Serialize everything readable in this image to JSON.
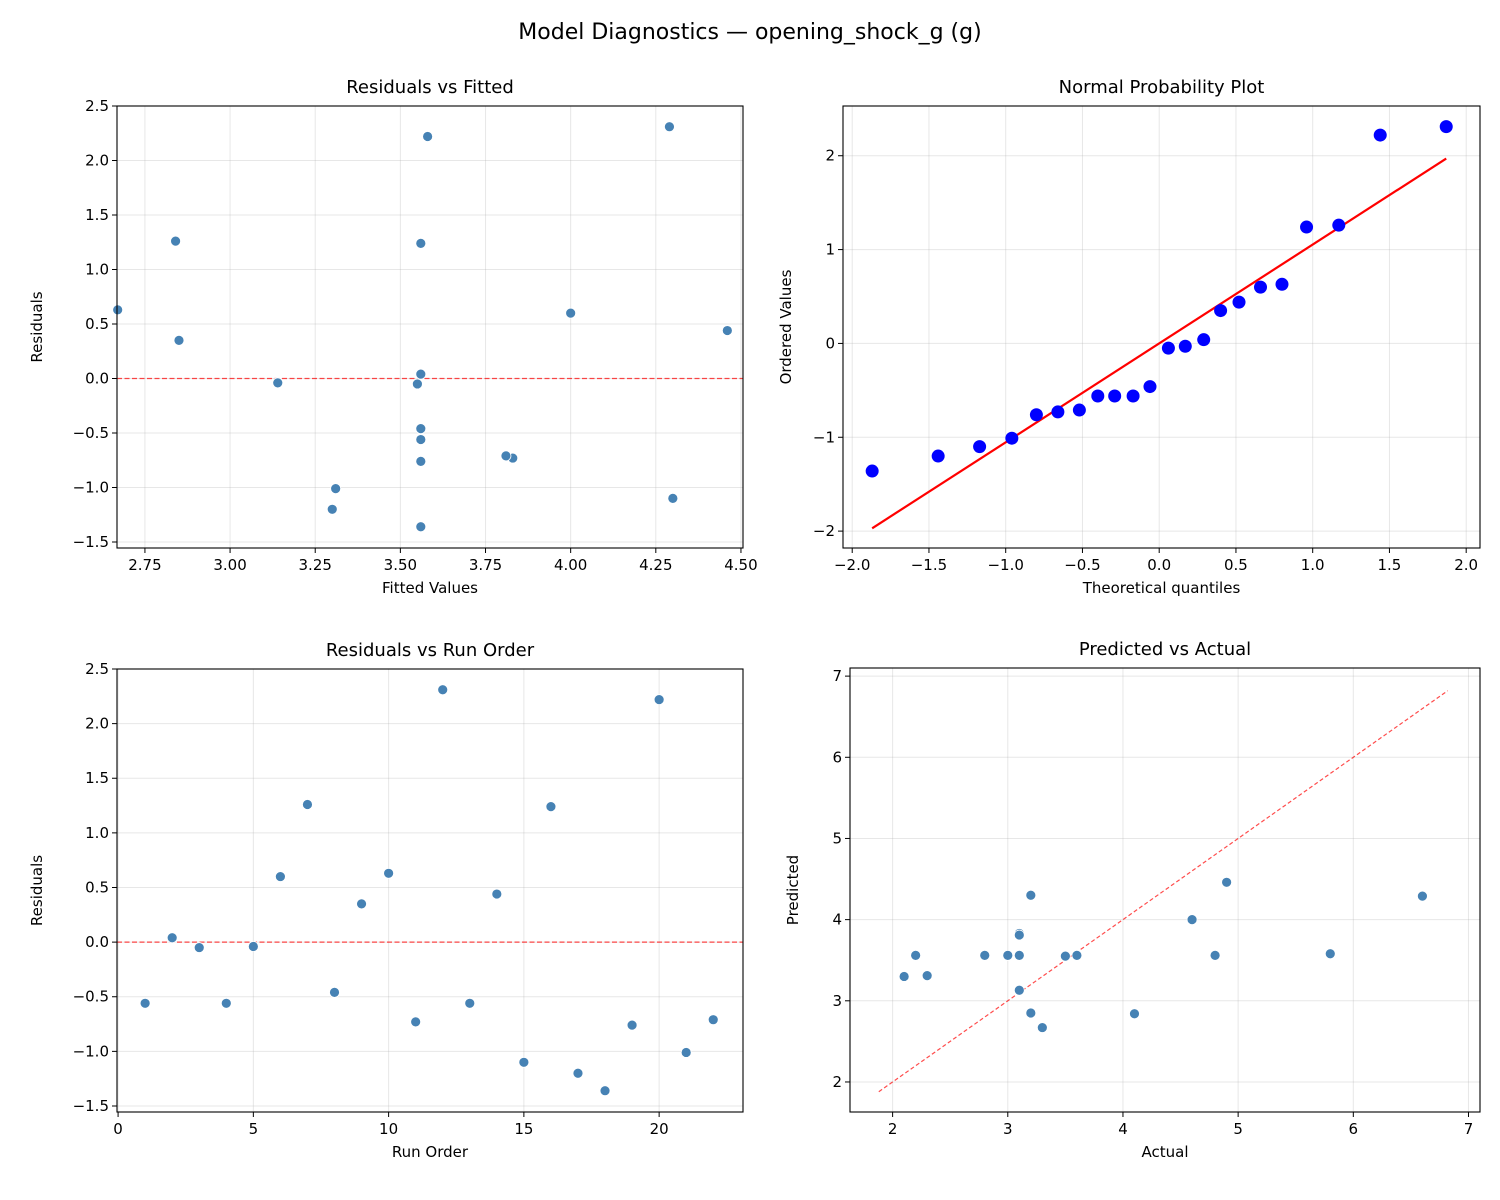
{
  "title": "Model Diagnostics — opening_shock_g (g)",
  "chart_data": [
    {
      "type": "scatter",
      "title": "Residuals vs Fitted",
      "xlabel": "Fitted Values",
      "ylabel": "Residuals",
      "xlim": [
        2.668,
        4.506
      ],
      "ylim": [
        -1.555,
        2.5
      ],
      "xticks": [
        2.75,
        3.0,
        3.25,
        3.5,
        3.75,
        4.0,
        4.25,
        4.5
      ],
      "xtick_labels": [
        "2.75",
        "3.00",
        "3.25",
        "3.50",
        "3.75",
        "4.00",
        "4.25",
        "4.50"
      ],
      "yticks": [
        -1.5,
        -1.0,
        -0.5,
        0.0,
        0.5,
        1.0,
        1.5,
        2.0,
        2.5
      ],
      "ytick_labels": [
        "−1.5",
        "−1.0",
        "−0.5",
        "0.0",
        "0.5",
        "1.0",
        "1.5",
        "2.0",
        "2.5"
      ],
      "grid": true,
      "x": [
        3.56,
        3.56,
        3.55,
        3.56,
        3.14,
        4.0,
        2.84,
        3.56,
        2.85,
        2.67,
        3.83,
        4.29,
        3.56,
        4.46,
        4.3,
        3.56,
        3.3,
        3.56,
        3.56,
        3.58,
        3.31,
        3.81
      ],
      "y": [
        -0.56,
        0.04,
        -0.05,
        -0.56,
        -0.04,
        0.6,
        1.26,
        -0.46,
        0.35,
        0.63,
        -0.73,
        2.31,
        -0.56,
        0.44,
        -1.1,
        1.24,
        -1.2,
        -1.36,
        -0.76,
        2.22,
        -1.01,
        -0.71
      ],
      "hline": 0,
      "marker_color": "#4682b4",
      "ref_color": "#ff0000"
    },
    {
      "type": "scatter",
      "title": "Normal Probability Plot",
      "xlabel": "Theoretical quantiles",
      "ylabel": "Ordered Values",
      "xlim": [
        -2.06,
        2.09
      ],
      "ylim": [
        -2.18,
        2.53
      ],
      "xticks": [
        -2.0,
        -1.5,
        -1.0,
        -0.5,
        0.0,
        0.5,
        1.0,
        1.5,
        2.0
      ],
      "xtick_labels": [
        "−2.0",
        "−1.5",
        "−1.0",
        "−0.5",
        "0.0",
        "0.5",
        "1.0",
        "1.5",
        "2.0"
      ],
      "yticks": [
        -2,
        -1,
        0,
        1,
        2
      ],
      "ytick_labels": [
        "−2",
        "−1",
        "0",
        "1",
        "2"
      ],
      "grid": true,
      "x": [
        -1.87,
        -1.44,
        -1.17,
        -0.96,
        -0.8,
        -0.66,
        -0.52,
        -0.4,
        -0.29,
        -0.17,
        -0.06,
        0.06,
        0.17,
        0.29,
        0.4,
        0.52,
        0.66,
        0.8,
        0.96,
        1.17,
        1.44,
        1.87
      ],
      "y": [
        -1.36,
        -1.2,
        -1.1,
        -1.01,
        -0.76,
        -0.73,
        -0.71,
        -0.56,
        -0.56,
        -0.56,
        -0.46,
        -0.05,
        -0.03,
        0.04,
        0.35,
        0.44,
        0.6,
        0.63,
        1.24,
        1.26,
        2.22,
        2.31
      ],
      "fit_line": {
        "x": [
          -1.87,
          1.87
        ],
        "y": [
          -1.97,
          1.97
        ]
      },
      "marker_color": "#0000ff",
      "ref_color": "#ff0000"
    },
    {
      "type": "scatter",
      "title": "Residuals vs Run Order",
      "xlabel": "Run Order",
      "ylabel": "Residuals",
      "xlim": [
        -0.04,
        23.1
      ],
      "ylim": [
        -1.555,
        2.5
      ],
      "xticks": [
        0,
        5,
        10,
        15,
        20
      ],
      "xtick_labels": [
        "0",
        "5",
        "10",
        "15",
        "20"
      ],
      "yticks": [
        -1.5,
        -1.0,
        -0.5,
        0.0,
        0.5,
        1.0,
        1.5,
        2.0,
        2.5
      ],
      "ytick_labels": [
        "−1.5",
        "−1.0",
        "−0.5",
        "0.0",
        "0.5",
        "1.0",
        "1.5",
        "2.0",
        "2.5"
      ],
      "grid": true,
      "x": [
        1,
        2,
        3,
        4,
        5,
        6,
        7,
        8,
        9,
        10,
        11,
        12,
        13,
        14,
        15,
        16,
        17,
        18,
        19,
        20,
        21,
        22
      ],
      "y": [
        -0.56,
        0.04,
        -0.05,
        -0.56,
        -0.04,
        0.6,
        1.26,
        -0.46,
        0.35,
        0.63,
        -0.73,
        2.31,
        -0.56,
        0.44,
        -1.1,
        1.24,
        -1.2,
        -1.36,
        -0.76,
        2.22,
        -1.01,
        -0.71
      ],
      "hline": 0,
      "marker_color": "#4682b4",
      "ref_color": "#ff0000"
    },
    {
      "type": "scatter",
      "title": "Predicted vs Actual",
      "xlabel": "Actual",
      "ylabel": "Predicted",
      "xlim": [
        1.63,
        7.1
      ],
      "ylim": [
        1.63,
        7.1
      ],
      "xticks": [
        2,
        3,
        4,
        5,
        6,
        7
      ],
      "xtick_labels": [
        "2",
        "3",
        "4",
        "5",
        "6",
        "7"
      ],
      "yticks": [
        2,
        3,
        4,
        5,
        6,
        7
      ],
      "ytick_labels": [
        "2",
        "3",
        "4",
        "5",
        "6",
        "7"
      ],
      "grid": true,
      "x": [
        3.0,
        3.6,
        3.5,
        3.0,
        3.1,
        4.6,
        4.1,
        3.1,
        3.2,
        3.3,
        3.1,
        6.6,
        3.0,
        4.9,
        3.2,
        4.8,
        2.1,
        2.2,
        2.8,
        5.8,
        2.3,
        3.1
      ],
      "y": [
        3.56,
        3.56,
        3.55,
        3.56,
        3.13,
        4.0,
        2.84,
        3.56,
        2.85,
        2.67,
        3.83,
        4.29,
        3.56,
        4.46,
        4.3,
        3.56,
        3.3,
        3.56,
        3.56,
        3.58,
        3.31,
        3.81
      ],
      "diag_line": {
        "x": [
          1.88,
          6.82
        ],
        "y": [
          1.88,
          6.82
        ]
      },
      "marker_color": "#4682b4",
      "ref_color": "#ff0000"
    }
  ]
}
